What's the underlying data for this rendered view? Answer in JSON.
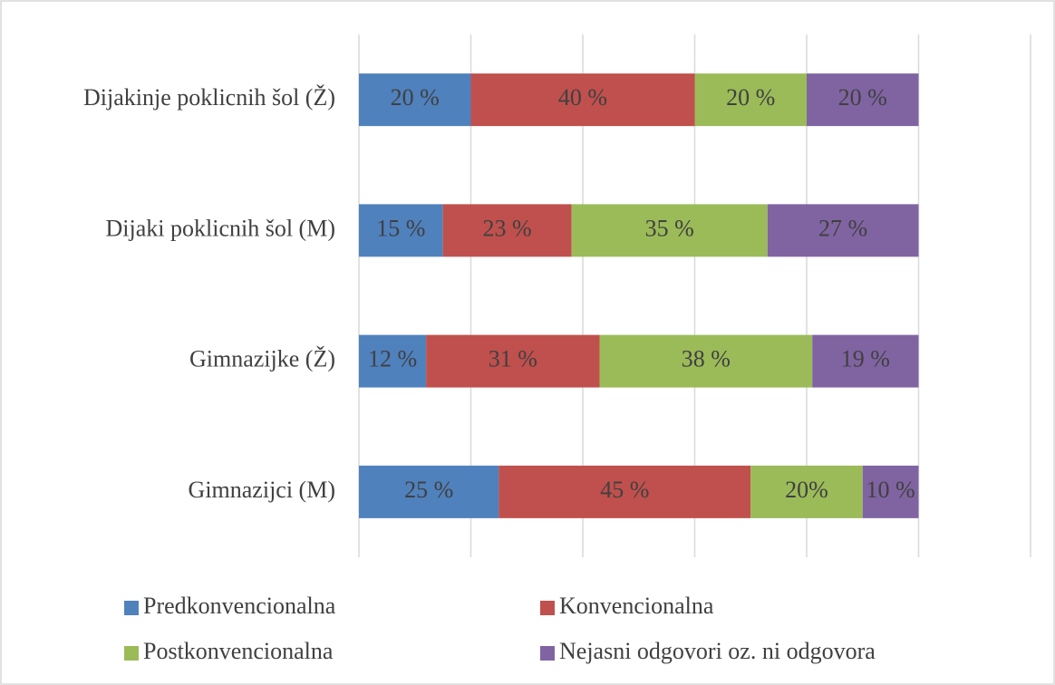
{
  "chart_data": {
    "type": "stacked-bar-horizontal",
    "categories": [
      "Dijakinje poklicnih šol (Ž)",
      "Dijaki poklicnih šol (M)",
      "Gimnazijke (Ž)",
      "Gimnazijci (M)"
    ],
    "series": [
      {
        "name": "Predkonvencionalna",
        "color": "#4f81bd",
        "values": [
          20,
          15,
          12,
          25
        ],
        "value_labels": [
          "20 %",
          "15  %",
          "12 %",
          "25 %"
        ]
      },
      {
        "name": "Konvencionalna",
        "color": "#c0504d",
        "values": [
          40,
          23,
          31,
          45
        ],
        "value_labels": [
          "40 %",
          "23 %",
          "31 %",
          "45 %"
        ]
      },
      {
        "name": "Postkonvencionalna",
        "color": "#9bbb59",
        "values": [
          20,
          35,
          38,
          20
        ],
        "value_labels": [
          "20 %",
          "35 %",
          "38 %",
          "20%"
        ]
      },
      {
        "name": "Nejasni odgovori oz. ni odgovora",
        "color": "#8064a2",
        "values": [
          20,
          27,
          19,
          10
        ],
        "value_labels": [
          "20 %",
          "27 %",
          "19 %",
          "10 %"
        ]
      }
    ],
    "xlim": [
      0,
      120
    ],
    "xticks": [
      0,
      20,
      40,
      60,
      80,
      100,
      120
    ],
    "grid": true,
    "legend": "bottom"
  }
}
